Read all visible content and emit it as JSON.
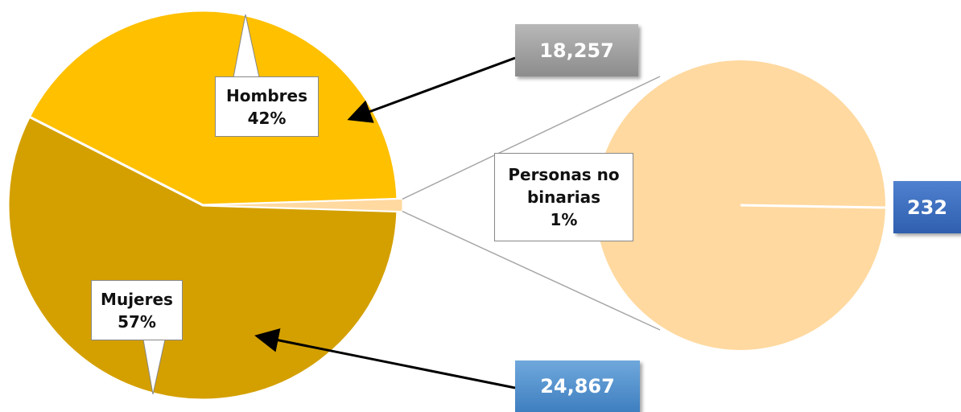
{
  "chart_data": {
    "type": "pie-of-pie",
    "categories": [
      "Hombres",
      "Mujeres",
      "Personas no binarias"
    ],
    "values": [
      42,
      57,
      1
    ],
    "value_labels": [
      "42%",
      "57%",
      "1%"
    ],
    "colors": [
      "#ffc000",
      "#d4a000",
      "#ffd9a0"
    ],
    "counts": [
      18257,
      24867,
      232
    ],
    "count_labels": [
      "18,257",
      "24,867",
      "232"
    ],
    "count_colors": [
      "#a6a6a6",
      "#5b9bd5",
      "#4472c4"
    ]
  }
}
